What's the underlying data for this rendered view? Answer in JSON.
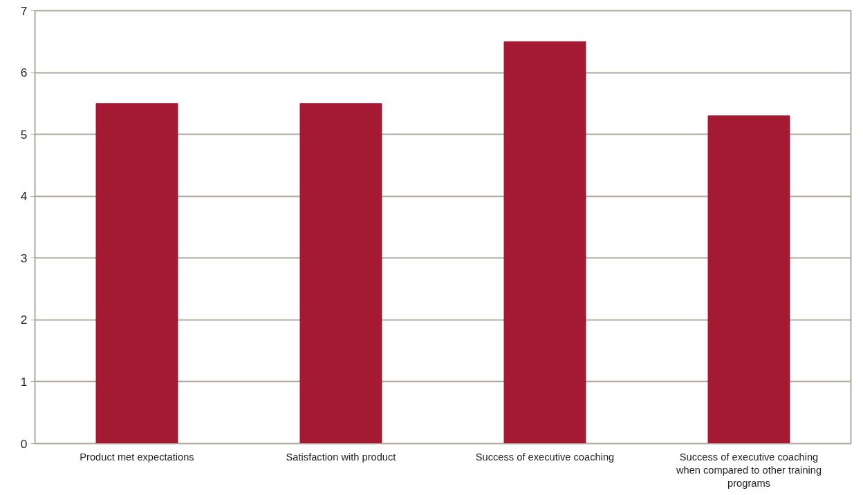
{
  "chart_data": {
    "type": "bar",
    "categories": [
      "Product met expectations",
      "Satisfaction with product",
      "Success of executive coaching",
      "Success of executive coaching when compared to other training programs"
    ],
    "values": [
      5.5,
      5.5,
      6.5,
      5.3
    ],
    "color": "#a51a33",
    "ylim": [
      0,
      7
    ],
    "yticks": [
      0,
      1,
      2,
      3,
      4,
      5,
      6,
      7
    ],
    "grid": "y"
  }
}
